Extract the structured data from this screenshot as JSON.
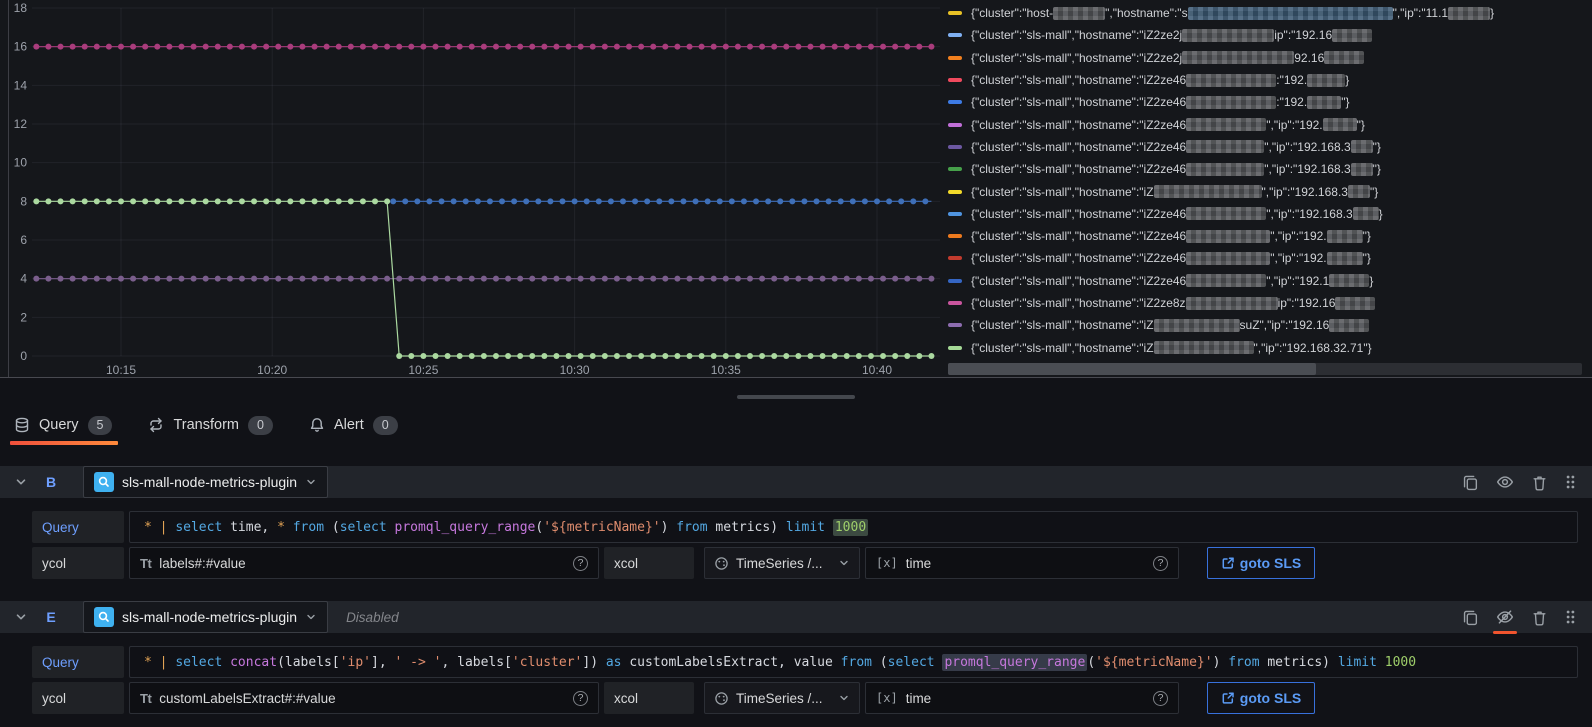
{
  "chart_data": {
    "type": "line",
    "title": "",
    "x_ticks": [
      {
        "label": "10:15",
        "m": 15
      },
      {
        "label": "10:20",
        "m": 20
      },
      {
        "label": "10:25",
        "m": 25
      },
      {
        "label": "10:30",
        "m": 30
      },
      {
        "label": "10:35",
        "m": 35
      },
      {
        "label": "10:40",
        "m": 40
      }
    ],
    "y_ticks": [
      0,
      2,
      4,
      6,
      8,
      10,
      12,
      14,
      16,
      18
    ],
    "ylim": [
      0,
      18
    ],
    "x_range_minutes": [
      12.2,
      41.8
    ],
    "marker_step_minutes": 0.4,
    "grid": true,
    "series": [
      {
        "name": "constant value 16",
        "color": "#a93c7c",
        "points": [
          [
            12.2,
            16
          ],
          [
            41.8,
            16
          ]
        ]
      },
      {
        "name": "constant value 4",
        "color": "#7a5e8c",
        "points": [
          [
            12.2,
            4
          ],
          [
            41.8,
            4
          ]
        ]
      },
      {
        "name": "constant value 8 (blue)",
        "color": "#3e6fb8",
        "points": [
          [
            24.0,
            8
          ],
          [
            41.8,
            8
          ]
        ]
      },
      {
        "name": "value 8 dropping to 0 at 10:24 (green)",
        "color": "#abd9a0",
        "points": [
          [
            12.2,
            8
          ],
          [
            23.8,
            8
          ],
          [
            24.2,
            0
          ],
          [
            41.8,
            0
          ]
        ]
      }
    ]
  },
  "legend": {
    "entries": [
      {
        "color": "#e8c126",
        "parts": [
          {
            "t": "{\"cluster\":\"host-"
          },
          {
            "b": 52
          },
          {
            "t": "\",\"hostname\":\"s"
          },
          {
            "bb": 205
          },
          {
            "t": "\",\"ip\":\"11.1"
          },
          {
            "b": 42
          },
          {
            "t": "}"
          }
        ]
      },
      {
        "color": "#7fb0f2",
        "parts": [
          {
            "t": "{\"cluster\":\"sls-mall\",\"hostname\":\"iZ2ze2j"
          },
          {
            "b": 92
          },
          {
            "t": "ip\":\"192.16"
          },
          {
            "b": 40
          }
        ]
      },
      {
        "color": "#f2801e",
        "parts": [
          {
            "t": "{\"cluster\":\"sls-mall\",\"hostname\":\"iZ2ze2j"
          },
          {
            "b": 112
          },
          {
            "t": "92.16"
          },
          {
            "b": 40
          }
        ]
      },
      {
        "color": "#f04a5e",
        "parts": [
          {
            "t": "{\"cluster\":\"sls-mall\",\"hostname\":\"iZ2ze46"
          },
          {
            "b": 90
          },
          {
            "t": ":\"192."
          },
          {
            "b": 38
          },
          {
            "t": "}"
          }
        ]
      },
      {
        "color": "#3d7be5",
        "parts": [
          {
            "t": "{\"cluster\":\"sls-mall\",\"hostname\":\"iZ2ze46"
          },
          {
            "b": 90
          },
          {
            "t": ":\"192."
          },
          {
            "b": 34
          },
          {
            "t": "\"}"
          }
        ]
      },
      {
        "color": "#c06fd8",
        "parts": [
          {
            "t": "{\"cluster\":\"sls-mall\",\"hostname\":\"iZ2ze46"
          },
          {
            "b": 80
          },
          {
            "t": "\",\"ip\":\"192."
          },
          {
            "b": 34
          },
          {
            "t": "\"}"
          }
        ]
      },
      {
        "color": "#6c58a2",
        "parts": [
          {
            "t": "{\"cluster\":\"sls-mall\",\"hostname\":\"iZ2ze46"
          },
          {
            "b": 78
          },
          {
            "t": "\",\"ip\":\"192.168.3"
          },
          {
            "b": 22
          },
          {
            "t": "\"}"
          }
        ]
      },
      {
        "color": "#46a04a",
        "parts": [
          {
            "t": "{\"cluster\":\"sls-mall\",\"hostname\":\"iZ2ze46"
          },
          {
            "b": 78
          },
          {
            "t": "\",\"ip\":\"192.168.3"
          },
          {
            "b": 22
          },
          {
            "t": "\"}"
          }
        ]
      },
      {
        "color": "#f2da2a",
        "parts": [
          {
            "t": "{\"cluster\":\"sls-mall\",\"hostname\":\"iZ"
          },
          {
            "b": 108
          },
          {
            "t": "\",\"ip\":\"192.168.3"
          },
          {
            "b": 22
          },
          {
            "t": "\"}"
          }
        ]
      },
      {
        "color": "#4f94e0",
        "parts": [
          {
            "t": "{\"cluster\":\"sls-mall\",\"hostname\":\"iZ2ze46"
          },
          {
            "b": 80
          },
          {
            "t": "\",\"ip\":\"192.168.3"
          },
          {
            "b": 26
          },
          {
            "t": "}"
          }
        ]
      },
      {
        "color": "#ed7a1e",
        "parts": [
          {
            "t": "{\"cluster\":\"sls-mall\",\"hostname\":\"iZ2ze46"
          },
          {
            "b": 84
          },
          {
            "t": "\",\"ip\":\"192."
          },
          {
            "b": 36
          },
          {
            "t": "\"}"
          }
        ]
      },
      {
        "color": "#c23b2e",
        "parts": [
          {
            "t": "{\"cluster\":\"sls-mall\",\"hostname\":\"iZ2ze46"
          },
          {
            "b": 84
          },
          {
            "t": "\",\"ip\":\"192."
          },
          {
            "b": 36
          },
          {
            "t": "\"}"
          }
        ]
      },
      {
        "color": "#3566c4",
        "parts": [
          {
            "t": "{\"cluster\":\"sls-mall\",\"hostname\":\"iZ2ze46"
          },
          {
            "b": 80
          },
          {
            "t": "\",\"ip\":\"192.1"
          },
          {
            "b": 40
          },
          {
            "t": "}"
          }
        ]
      },
      {
        "color": "#c9559e",
        "parts": [
          {
            "t": "{\"cluster\":\"sls-mall\",\"hostname\":\"iZ2ze8z"
          },
          {
            "b": 92
          },
          {
            "t": "ip\":\"192.16"
          },
          {
            "b": 40
          }
        ]
      },
      {
        "color": "#8d6db0",
        "parts": [
          {
            "t": "{\"cluster\":\"sls-mall\",\"hostname\":\"iZ"
          },
          {
            "b": 86
          },
          {
            "t": "suZ\",\"ip\":\"192.16"
          },
          {
            "b": 40
          }
        ]
      },
      {
        "color": "#a5d996",
        "parts": [
          {
            "t": "{\"cluster\":\"sls-mall\",\"hostname\":\"iZ"
          },
          {
            "b": 100
          },
          {
            "t": "\",\"ip\":\"192.168.32.71\"}"
          }
        ]
      }
    ]
  },
  "tabs": [
    {
      "label": "Query",
      "count": "5",
      "active": true
    },
    {
      "label": "Transform",
      "count": "0",
      "active": false
    },
    {
      "label": "Alert",
      "count": "0",
      "active": false
    }
  ],
  "labels": {
    "query": "Query",
    "ycol": "ycol",
    "xcol": "xcol"
  },
  "icons": {
    "tt": "Tt",
    "fx": "[x]",
    "help": "?"
  },
  "queries": [
    {
      "refId": "B",
      "datasource": "sls-mall-node-metrics-plugin",
      "disabled": false,
      "disabled_label": "",
      "query_text": "* | select time, * from (select promql_query_range('${metricName}') from metrics) limit 1000",
      "query_tokens": [
        {
          "c": "op",
          "v": "*"
        },
        {
          "c": "p",
          "v": " "
        },
        {
          "c": "op",
          "v": "|"
        },
        {
          "c": "p",
          "v": " "
        },
        {
          "c": "kw",
          "v": "select"
        },
        {
          "c": "p",
          "v": " time, "
        },
        {
          "c": "op",
          "v": "*"
        },
        {
          "c": "p",
          "v": " "
        },
        {
          "c": "kw",
          "v": "from"
        },
        {
          "c": "p",
          "v": " ("
        },
        {
          "c": "kw",
          "v": "select"
        },
        {
          "c": "p",
          "v": " "
        },
        {
          "c": "fn",
          "v": "promql_query_range"
        },
        {
          "c": "p",
          "v": "("
        },
        {
          "c": "str",
          "v": "'${metricName}'"
        },
        {
          "c": "p",
          "v": ") "
        },
        {
          "c": "kw",
          "v": "from"
        },
        {
          "c": "p",
          "v": " metrics) "
        },
        {
          "c": "kw",
          "v": "limit"
        },
        {
          "c": "p",
          "v": " "
        },
        {
          "c": "num",
          "v": "1000",
          "bg": "green"
        }
      ],
      "ycol": "labels#:#value",
      "xcol_type": "TimeSeries /...",
      "xcol_value": "time",
      "goto_label": "goto SLS"
    },
    {
      "refId": "E",
      "datasource": "sls-mall-node-metrics-plugin",
      "disabled": true,
      "disabled_label": "Disabled",
      "query_text": "* | select concat(labels['ip'], ' -> ', labels['cluster']) as customLabelsExtract, value from (select promql_query_range('${metricName}') from metrics) limit 1000",
      "query_tokens": [
        {
          "c": "op",
          "v": "*"
        },
        {
          "c": "p",
          "v": " "
        },
        {
          "c": "op",
          "v": "|"
        },
        {
          "c": "p",
          "v": " "
        },
        {
          "c": "kw",
          "v": "select"
        },
        {
          "c": "p",
          "v": " "
        },
        {
          "c": "fn",
          "v": "concat"
        },
        {
          "c": "p",
          "v": "(labels["
        },
        {
          "c": "str",
          "v": "'ip'"
        },
        {
          "c": "p",
          "v": "], "
        },
        {
          "c": "str",
          "v": "' -> '"
        },
        {
          "c": "p",
          "v": ", labels["
        },
        {
          "c": "str",
          "v": "'cluster'"
        },
        {
          "c": "p",
          "v": "]) "
        },
        {
          "c": "kw",
          "v": "as"
        },
        {
          "c": "p",
          "v": " customLabelsExtract, value "
        },
        {
          "c": "kw",
          "v": "from"
        },
        {
          "c": "p",
          "v": " ("
        },
        {
          "c": "kw",
          "v": "select"
        },
        {
          "c": "p",
          "v": " "
        },
        {
          "c": "fn",
          "v": "promql_query_range",
          "bg": "slate"
        },
        {
          "c": "p",
          "v": "("
        },
        {
          "c": "str",
          "v": "'${metricName}'"
        },
        {
          "c": "p",
          "v": ") "
        },
        {
          "c": "kw",
          "v": "from"
        },
        {
          "c": "p",
          "v": " metrics) "
        },
        {
          "c": "kw",
          "v": "limit"
        },
        {
          "c": "p",
          "v": " "
        },
        {
          "c": "num",
          "v": "1000"
        }
      ],
      "ycol": "customLabelsExtract#:#value",
      "xcol_type": "TimeSeries /...",
      "xcol_value": "time",
      "goto_label": "goto SLS"
    }
  ]
}
